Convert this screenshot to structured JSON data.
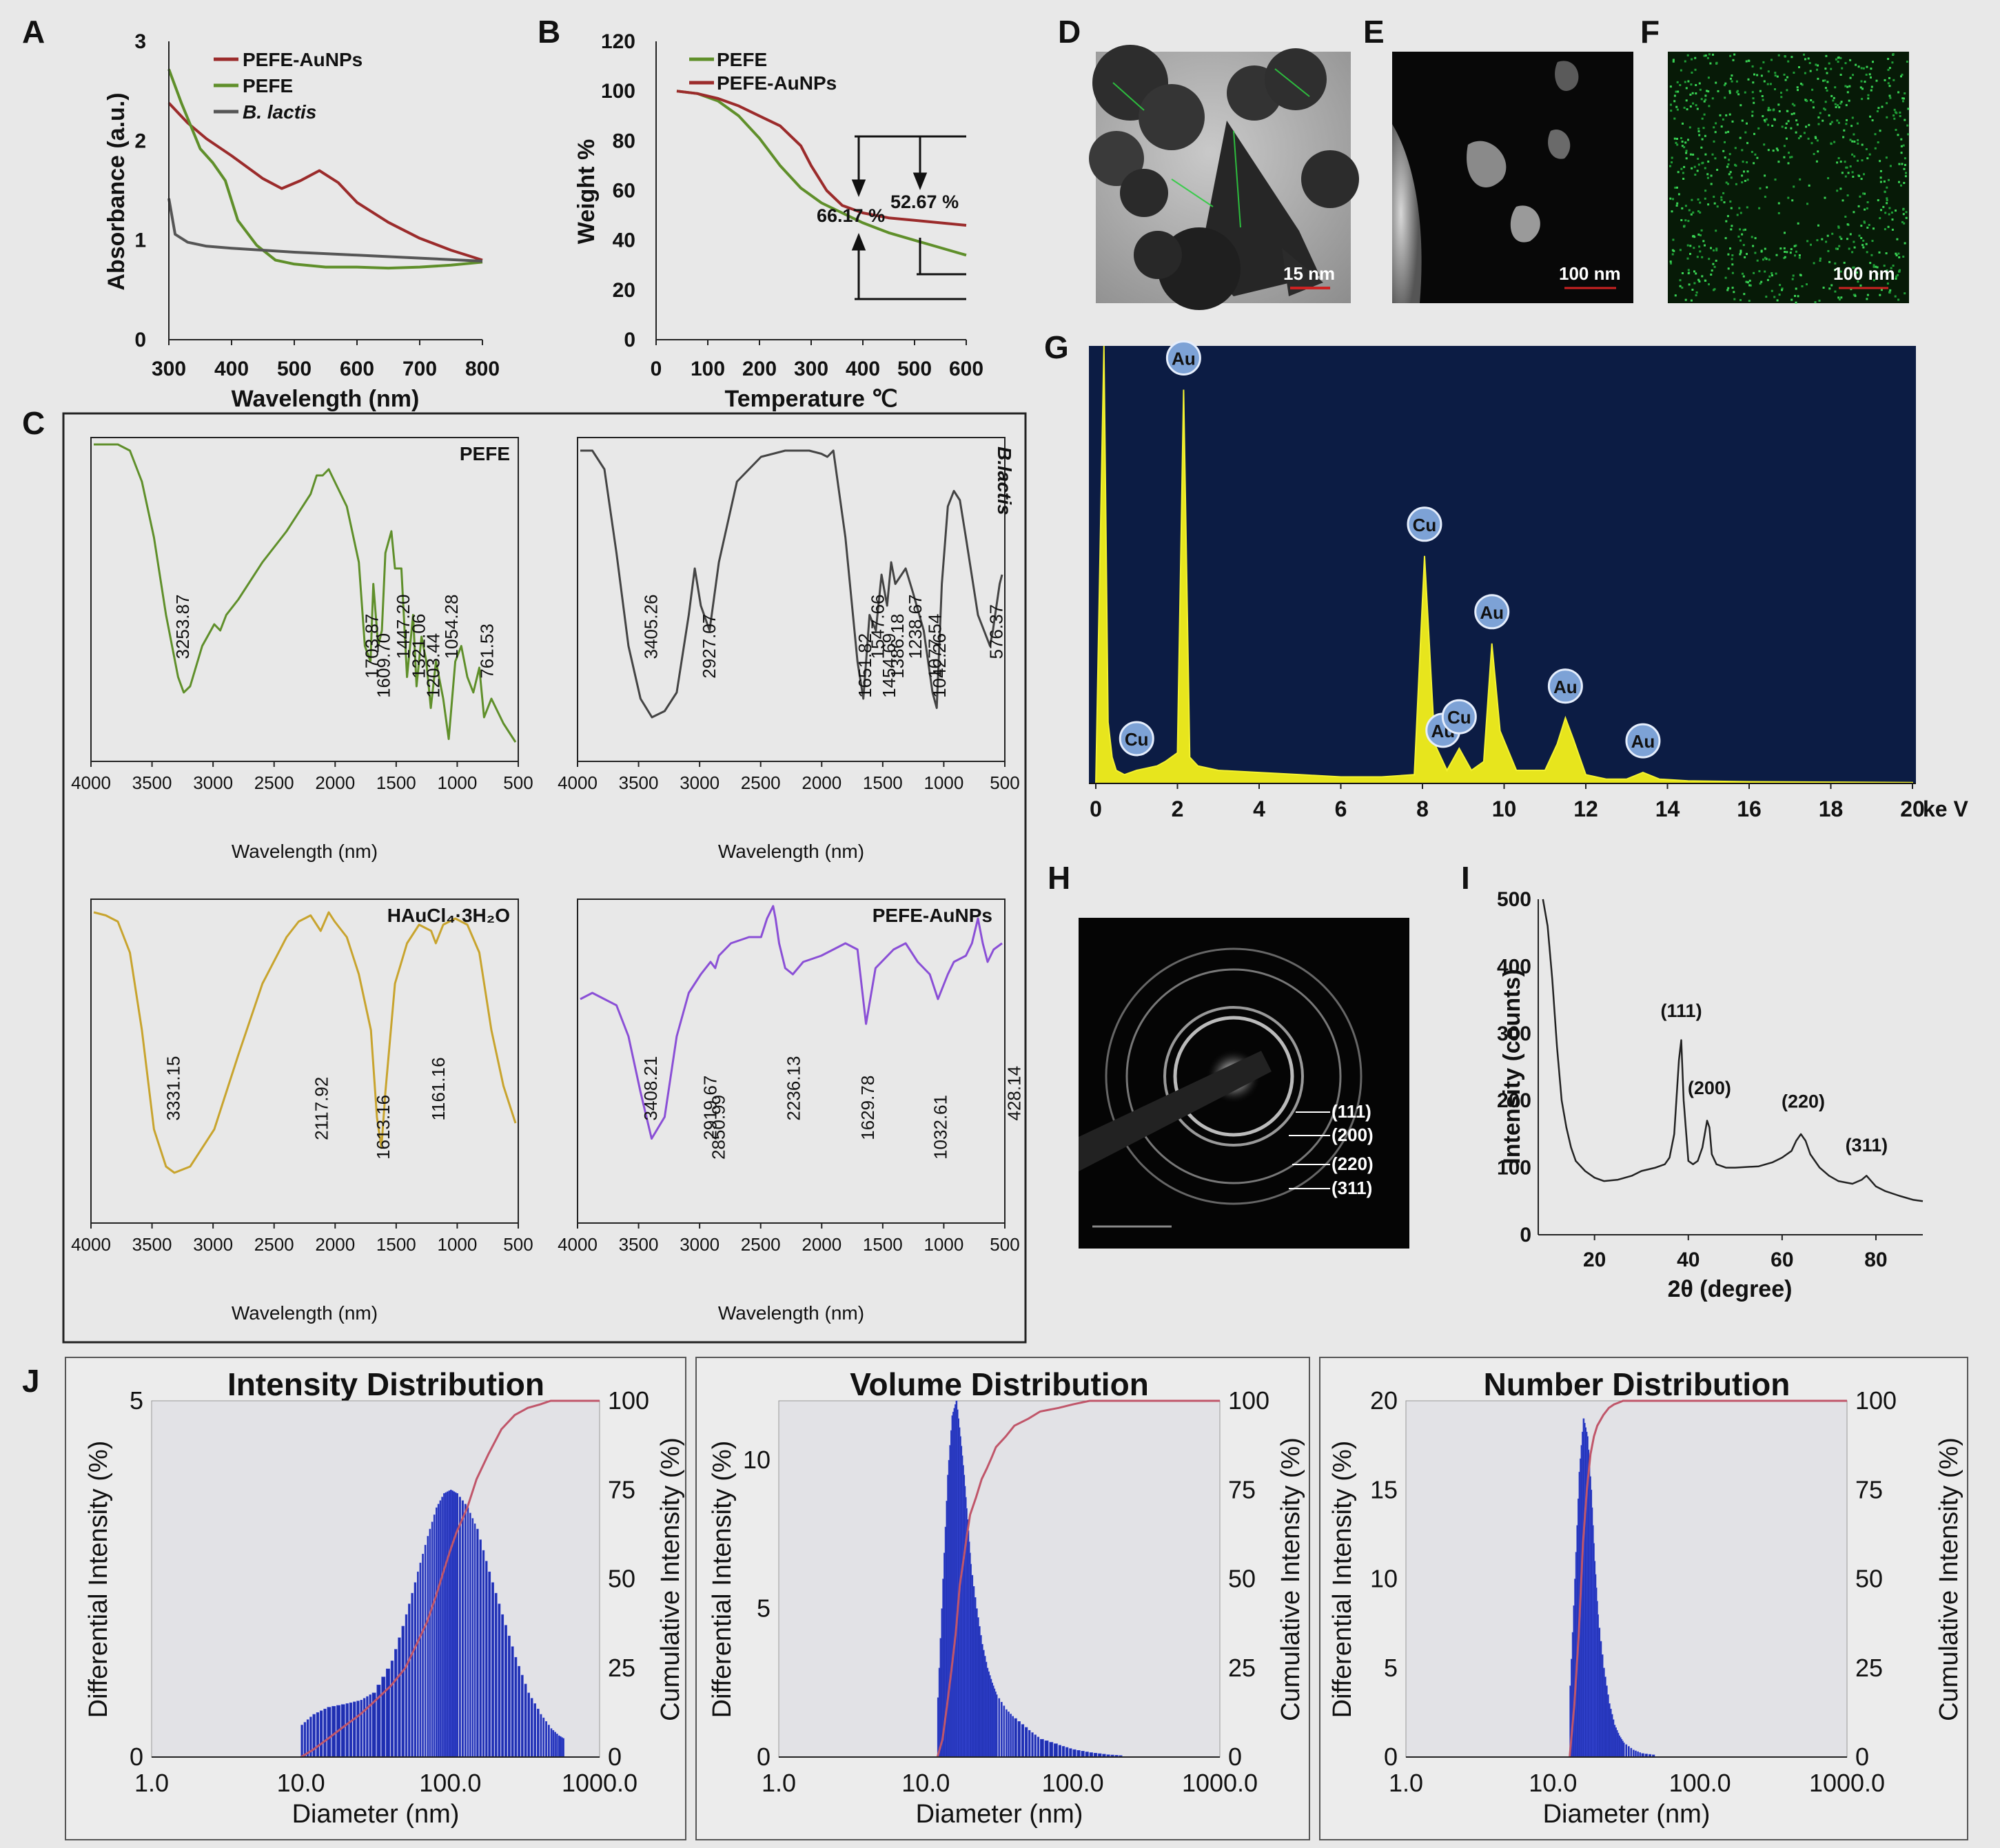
{
  "panel_labels": {
    "A": "A",
    "B": "B",
    "C": "C",
    "D": "D",
    "E": "E",
    "F": "F",
    "G": "G",
    "H": "H",
    "I": "I",
    "J": "J"
  },
  "chart_data": [
    {
      "id": "A",
      "type": "line",
      "xlabel": "Wavelength (nm)",
      "ylabel": "Absorbance (a.u.)",
      "xlim": [
        300,
        800
      ],
      "ylim": [
        0,
        3
      ],
      "xticks": [
        300,
        400,
        500,
        600,
        700,
        800
      ],
      "yticks": [
        0,
        1,
        2,
        3
      ],
      "legend": [
        "PEFE-AuNPs",
        "PEFE",
        "B. lactis"
      ],
      "series": [
        {
          "name": "PEFE-AuNPs",
          "color": "#9b2b2b",
          "x": [
            300,
            330,
            360,
            400,
            450,
            480,
            510,
            540,
            570,
            600,
            650,
            700,
            750,
            800
          ],
          "y": [
            2.38,
            2.18,
            2.02,
            1.85,
            1.62,
            1.52,
            1.6,
            1.7,
            1.58,
            1.38,
            1.18,
            1.02,
            0.9,
            0.8
          ]
        },
        {
          "name": "PEFE",
          "color": "#5f8f2a",
          "x": [
            300,
            320,
            350,
            370,
            390,
            410,
            440,
            470,
            500,
            550,
            600,
            650,
            700,
            750,
            800
          ],
          "y": [
            2.72,
            2.38,
            1.92,
            1.78,
            1.6,
            1.2,
            0.95,
            0.8,
            0.76,
            0.73,
            0.73,
            0.72,
            0.73,
            0.75,
            0.78
          ]
        },
        {
          "name": "B. lactis",
          "color": "#555555",
          "x": [
            300,
            310,
            330,
            360,
            400,
            450,
            500,
            600,
            700,
            800
          ],
          "y": [
            1.42,
            1.06,
            0.98,
            0.94,
            0.92,
            0.9,
            0.88,
            0.85,
            0.82,
            0.79
          ]
        }
      ]
    },
    {
      "id": "B",
      "type": "line",
      "xlabel": "Temperature ℃",
      "ylabel": "Weight %",
      "xlim": [
        0,
        600
      ],
      "ylim": [
        0,
        120
      ],
      "xticks": [
        0,
        100,
        200,
        300,
        400,
        500,
        600
      ],
      "yticks": [
        0,
        20,
        40,
        60,
        80,
        100,
        120
      ],
      "legend": [
        "PEFE",
        "PEFE-AuNPs"
      ],
      "annotations": [
        "66.17 %",
        "52.67 %"
      ],
      "series": [
        {
          "name": "PEFE",
          "color": "#5f8f2a",
          "x": [
            40,
            80,
            120,
            160,
            200,
            240,
            280,
            320,
            360,
            400,
            450,
            500,
            550,
            600
          ],
          "y": [
            100,
            99,
            96,
            90,
            81,
            70,
            61,
            55,
            51,
            47,
            43,
            40,
            37,
            34
          ]
        },
        {
          "name": "PEFE-AuNPs",
          "color": "#9b2b2b",
          "x": [
            40,
            80,
            120,
            160,
            200,
            240,
            280,
            300,
            330,
            360,
            400,
            450,
            500,
            550,
            600
          ],
          "y": [
            100,
            99,
            97,
            94,
            90,
            86,
            78,
            70,
            60,
            54,
            51,
            49,
            48,
            47,
            46
          ]
        }
      ]
    },
    {
      "id": "C1",
      "type": "line",
      "title": "PEFE",
      "color": "#5f8f2a",
      "xlabel": "Wavelength (nm)",
      "xlim": [
        4000,
        500
      ],
      "xticks": [
        4000,
        3500,
        3000,
        2500,
        2000,
        1500,
        1000,
        500
      ],
      "peaks": [
        "3253.87",
        "1703.87",
        "1609.70",
        "1447.20",
        "1321.06",
        "1203.44",
        "1054.28",
        "761.53"
      ],
      "x": [
        4000,
        3800,
        3700,
        3600,
        3500,
        3400,
        3300,
        3253,
        3200,
        3100,
        3000,
        2950,
        2900,
        2800,
        2600,
        2400,
        2200,
        2150,
        2100,
        2050,
        2000,
        1900,
        1800,
        1750,
        1703,
        1680,
        1640,
        1609,
        1580,
        1530,
        1500,
        1447,
        1400,
        1350,
        1321,
        1280,
        1240,
        1203,
        1160,
        1100,
        1054,
        1000,
        950,
        900,
        850,
        800,
        761,
        700,
        600,
        500
      ],
      "y": [
        0,
        0,
        2,
        12,
        30,
        55,
        75,
        80,
        78,
        65,
        58,
        60,
        55,
        50,
        38,
        28,
        16,
        10,
        10,
        8,
        12,
        20,
        38,
        65,
        70,
        45,
        65,
        60,
        35,
        28,
        40,
        40,
        75,
        55,
        78,
        62,
        70,
        85,
        70,
        82,
        95,
        70,
        65,
        75,
        80,
        72,
        88,
        82,
        90,
        96
      ]
    },
    {
      "id": "C2",
      "type": "line",
      "title": "B.lactis",
      "color": "#444444",
      "xlabel": "Wavelength (nm)",
      "xlim": [
        4000,
        500
      ],
      "xticks": [
        4000,
        3500,
        3000,
        2500,
        2000,
        1500,
        1000,
        500
      ],
      "peaks": [
        "3405.26",
        "2927.07",
        "1651.82",
        "1547.66",
        "1386.18",
        "1454.69",
        "1238.67",
        "1077.54",
        "1042.26",
        "576.37"
      ],
      "x": [
        4000,
        3900,
        3800,
        3700,
        3600,
        3500,
        3405,
        3300,
        3200,
        3100,
        3050,
        3000,
        2927,
        2850,
        2700,
        2500,
        2300,
        2100,
        2000,
        1950,
        1900,
        1800,
        1700,
        1651,
        1600,
        1547,
        1500,
        1454,
        1420,
        1386,
        1300,
        1238,
        1150,
        1077,
        1042,
        1000,
        950,
        900,
        850,
        800,
        700,
        600,
        576,
        520,
        500
      ],
      "y": [
        2,
        2,
        8,
        35,
        65,
        82,
        88,
        86,
        80,
        55,
        40,
        52,
        60,
        38,
        12,
        4,
        2,
        2,
        3,
        4,
        2,
        30,
        70,
        82,
        55,
        60,
        42,
        52,
        38,
        45,
        40,
        48,
        60,
        80,
        85,
        45,
        20,
        15,
        18,
        30,
        55,
        65,
        60,
        45,
        42
      ]
    },
    {
      "id": "C3",
      "type": "line",
      "title": "HAuCl₄·3H₂O",
      "color": "#c8a42e",
      "xlabel": "Wavelength (nm)",
      "xlim": [
        4000,
        500
      ],
      "xticks": [
        4000,
        3500,
        3000,
        2500,
        2000,
        1500,
        1000,
        500
      ],
      "peaks": [
        "3331.15",
        "2117.92",
        "1613.16",
        "1161.16"
      ],
      "x": [
        4000,
        3900,
        3800,
        3700,
        3600,
        3500,
        3400,
        3331,
        3200,
        3000,
        2800,
        2600,
        2400,
        2300,
        2200,
        2117,
        2050,
        2000,
        1900,
        1800,
        1700,
        1650,
        1613,
        1580,
        1500,
        1400,
        1300,
        1200,
        1161,
        1100,
        1000,
        900,
        800,
        700,
        600,
        500
      ],
      "y": [
        2,
        3,
        5,
        15,
        40,
        72,
        84,
        86,
        84,
        72,
        48,
        25,
        10,
        5,
        3,
        8,
        2,
        5,
        10,
        22,
        40,
        68,
        78,
        60,
        25,
        12,
        6,
        8,
        12,
        6,
        4,
        6,
        15,
        40,
        58,
        70
      ]
    },
    {
      "id": "C4",
      "type": "line",
      "title": "PEFE-AuNPs",
      "color": "#8a4fd6",
      "xlabel": "Wavelength (nm)",
      "xlim": [
        4000,
        500
      ],
      "xticks": [
        4000,
        3500,
        3000,
        2500,
        2000,
        1500,
        1000,
        500
      ],
      "peaks": [
        "3408.21",
        "2919.67",
        "2850.99",
        "2236.13",
        "1629.78",
        "1032.61",
        "428.14"
      ],
      "x": [
        4000,
        3900,
        3800,
        3700,
        3600,
        3500,
        3408,
        3300,
        3200,
        3100,
        3000,
        2919,
        2880,
        2850,
        2750,
        2600,
        2500,
        2450,
        2400,
        2380,
        2350,
        2300,
        2236,
        2150,
        2000,
        1900,
        1800,
        1700,
        1629,
        1550,
        1400,
        1300,
        1200,
        1100,
        1032,
        950,
        900,
        800,
        750,
        700,
        660,
        620,
        570,
        500
      ],
      "y": [
        30,
        28,
        30,
        32,
        42,
        60,
        75,
        68,
        42,
        28,
        22,
        18,
        20,
        16,
        12,
        10,
        10,
        4,
        0,
        4,
        12,
        20,
        22,
        18,
        16,
        14,
        12,
        14,
        38,
        20,
        14,
        12,
        18,
        22,
        30,
        22,
        18,
        16,
        12,
        4,
        12,
        18,
        14,
        12
      ]
    },
    {
      "id": "G",
      "type": "bar",
      "subtype": "eds_spectrum",
      "xlabel": "ke V",
      "xlim": [
        0,
        20
      ],
      "xticks": [
        0,
        2,
        4,
        6,
        8,
        10,
        12,
        14,
        16,
        18,
        20
      ],
      "x": [
        0.2,
        0.3,
        0.4,
        0.5,
        0.7,
        1.0,
        1.5,
        1.7,
        2.0,
        2.15,
        2.3,
        2.5,
        3,
        4,
        5,
        6,
        7,
        7.8,
        8.05,
        8.3,
        8.6,
        8.9,
        9.2,
        9.5,
        9.7,
        9.9,
        10.3,
        11,
        11.3,
        11.5,
        11.7,
        12,
        12.5,
        13,
        13.4,
        13.8,
        14.5,
        16,
        18,
        20
      ],
      "y": [
        100,
        14,
        6,
        3,
        2,
        3,
        4,
        5,
        7,
        90,
        6,
        4,
        3,
        2.5,
        2,
        1.5,
        1.5,
        2,
        52,
        9,
        3,
        8,
        3,
        5,
        32,
        12,
        3,
        3,
        9,
        15,
        10,
        2,
        1,
        1,
        2.5,
        1,
        0.6,
        0.4,
        0.3,
        0.2
      ],
      "peak_labels": [
        {
          "label": "Cu",
          "kev": 1.0
        },
        {
          "label": "Au",
          "kev": 2.15
        },
        {
          "label": "Cu",
          "kev": 8.05
        },
        {
          "label": "Au",
          "kev": 8.3
        },
        {
          "label": "Cu",
          "kev": 8.9
        },
        {
          "label": "Au",
          "kev": 9.7
        },
        {
          "label": "Au",
          "kev": 11.5
        },
        {
          "label": "Au",
          "kev": 13.4
        }
      ]
    },
    {
      "id": "I",
      "type": "line",
      "xlabel": "2θ (degree)",
      "ylabel": "Intensity (counts)",
      "xlim": [
        8,
        90
      ],
      "ylim": [
        0,
        500
      ],
      "xticks": [
        20,
        40,
        60,
        80
      ],
      "yticks": [
        0,
        100,
        200,
        300,
        400,
        500
      ],
      "peak_labels": [
        "(111)",
        "(200)",
        "(220)",
        "(311)"
      ],
      "x": [
        9,
        10,
        11,
        12,
        13,
        14,
        15,
        16,
        18,
        20,
        22,
        25,
        28,
        30,
        33,
        35,
        36,
        37,
        38,
        38.5,
        39,
        40,
        41,
        42,
        43,
        44,
        44.5,
        45,
        46,
        48,
        50,
        55,
        58,
        60,
        62,
        63,
        64,
        64.5,
        65,
        66,
        68,
        70,
        72,
        75,
        77,
        78,
        79,
        80,
        82,
        85,
        88,
        90
      ],
      "y": [
        500,
        460,
        380,
        280,
        200,
        160,
        130,
        110,
        95,
        85,
        80,
        82,
        88,
        95,
        100,
        105,
        115,
        150,
        260,
        290,
        200,
        110,
        105,
        110,
        130,
        170,
        160,
        120,
        105,
        100,
        100,
        102,
        108,
        115,
        125,
        140,
        150,
        145,
        140,
        120,
        100,
        88,
        80,
        76,
        82,
        88,
        80,
        72,
        65,
        58,
        52,
        50
      ]
    },
    {
      "id": "J1",
      "type": "bar",
      "title": "Intensity Distribution",
      "xlabel": "Diameter (nm)",
      "ylabel": "Differential Intensity (%)",
      "y2label": "Cumulative Intensity (%)",
      "xscale": "log",
      "xlim": [
        1,
        1000
      ],
      "ylim": [
        0,
        5
      ],
      "y2lim": [
        0,
        100
      ],
      "xticks": [
        "1.0",
        "10.0",
        "100.0",
        "1000.0"
      ],
      "yticks": [
        0,
        5
      ],
      "y2ticks": [
        0,
        25,
        50,
        75,
        100
      ],
      "x": [
        10,
        12,
        15,
        20,
        25,
        30,
        40,
        50,
        60,
        70,
        80,
        90,
        100,
        110,
        130,
        150,
        180,
        220,
        270,
        330,
        400,
        470,
        530,
        580
      ],
      "values": [
        0.45,
        0.6,
        0.7,
        0.75,
        0.8,
        0.9,
        1.35,
        2.0,
        2.6,
        3.1,
        3.5,
        3.7,
        3.75,
        3.7,
        3.5,
        3.2,
        2.6,
        2.0,
        1.4,
        0.9,
        0.6,
        0.4,
        0.3,
        0.25
      ],
      "cumulative": [
        0,
        2,
        5,
        9,
        12,
        15,
        20,
        25,
        32,
        38,
        45,
        52,
        58,
        63,
        70,
        78,
        85,
        92,
        96,
        98,
        99,
        100,
        100,
        100
      ]
    },
    {
      "id": "J2",
      "type": "bar",
      "title": "Volume Distribution",
      "xlabel": "Diameter (nm)",
      "ylabel": "Differential Intensity (%)",
      "y2label": "Cumulative Intensity (%)",
      "xscale": "log",
      "xlim": [
        1,
        1000
      ],
      "ylim": [
        0,
        12
      ],
      "y2lim": [
        0,
        100
      ],
      "xticks": [
        "1.0",
        "10.0",
        "100.0",
        "1000.0"
      ],
      "yticks": [
        0,
        5,
        10
      ],
      "y2ticks": [
        0,
        25,
        50,
        75,
        100
      ],
      "x": [
        12,
        13,
        14,
        15,
        16,
        17,
        18,
        19,
        20,
        22,
        24,
        26,
        28,
        30,
        35,
        40,
        50,
        60,
        80,
        100,
        130,
        170,
        220
      ],
      "values": [
        2,
        6,
        9.5,
        11.5,
        12,
        10.8,
        9.5,
        8,
        6.5,
        5,
        3.8,
        3,
        2.5,
        2.1,
        1.6,
        1.3,
        0.9,
        0.6,
        0.4,
        0.25,
        0.15,
        0.08,
        0.04
      ],
      "cumulative": [
        0,
        5,
        15,
        25,
        35,
        48,
        55,
        62,
        68,
        73,
        78,
        81,
        84,
        87,
        90,
        93,
        95,
        97,
        98,
        99,
        100,
        100,
        100
      ]
    },
    {
      "id": "J3",
      "type": "bar",
      "title": "Number Distribution",
      "xlabel": "Diameter (nm)",
      "ylabel": "Differential Intensity (%)",
      "y2label": "Cumulative Intensity (%)",
      "xscale": "log",
      "xlim": [
        1,
        1000
      ],
      "ylim": [
        0,
        20
      ],
      "y2lim": [
        0,
        100
      ],
      "xticks": [
        "1.0",
        "10.0",
        "100.0",
        "1000.0"
      ],
      "yticks": [
        0,
        5,
        10,
        15,
        20
      ],
      "y2ticks": [
        0,
        25,
        50,
        75,
        100
      ],
      "x": [
        13,
        14,
        15,
        16,
        17,
        18,
        19,
        20,
        22,
        24,
        26,
        28,
        30,
        35,
        40,
        50
      ],
      "values": [
        4,
        10,
        16,
        19,
        18,
        15,
        11,
        8,
        5,
        3,
        1.8,
        1.2,
        0.8,
        0.4,
        0.2,
        0.1
      ],
      "cumulative": [
        0,
        15,
        35,
        60,
        75,
        85,
        90,
        93,
        96,
        98,
        99,
        99.5,
        100,
        100,
        100,
        100
      ]
    }
  ],
  "micro": {
    "D": {
      "scale": "15 nm"
    },
    "E": {
      "scale": "100 nm"
    },
    "F": {
      "scale": "100 nm"
    },
    "H": {
      "rings": [
        "(111)",
        "(200)",
        "(220)",
        "(311)"
      ]
    }
  }
}
